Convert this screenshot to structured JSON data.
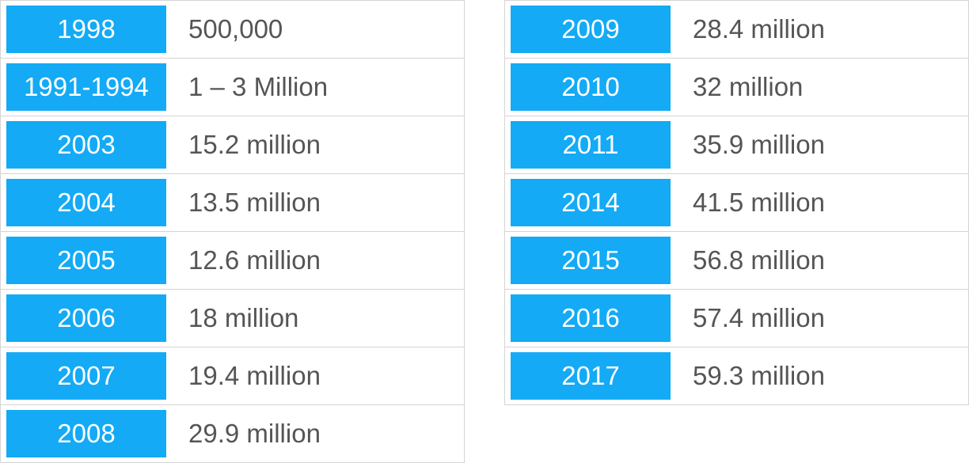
{
  "colors": {
    "year_bg": "#14aaf5",
    "year_text": "#ffffff",
    "value_text": "#555555",
    "border": "#d4d4d4"
  },
  "left_table": [
    {
      "year": "1998",
      "value": "500,000"
    },
    {
      "year": "1991-1994",
      "value": "1 – 3 Million"
    },
    {
      "year": "2003",
      "value": "15.2 million"
    },
    {
      "year": "2004",
      "value": "13.5 million"
    },
    {
      "year": "2005",
      "value": "12.6 million"
    },
    {
      "year": "2006",
      "value": "18 million"
    },
    {
      "year": "2007",
      "value": "19.4 million"
    },
    {
      "year": "2008",
      "value": "29.9 million"
    }
  ],
  "right_table": [
    {
      "year": "2009",
      "value": "28.4 million"
    },
    {
      "year": "2010",
      "value": "32 million"
    },
    {
      "year": "2011",
      "value": "35.9 million"
    },
    {
      "year": "2014",
      "value": "41.5 million"
    },
    {
      "year": "2015",
      "value": "56.8 million"
    },
    {
      "year": "2016",
      "value": "57.4 million"
    },
    {
      "year": "2017",
      "value": "59.3 million"
    }
  ]
}
